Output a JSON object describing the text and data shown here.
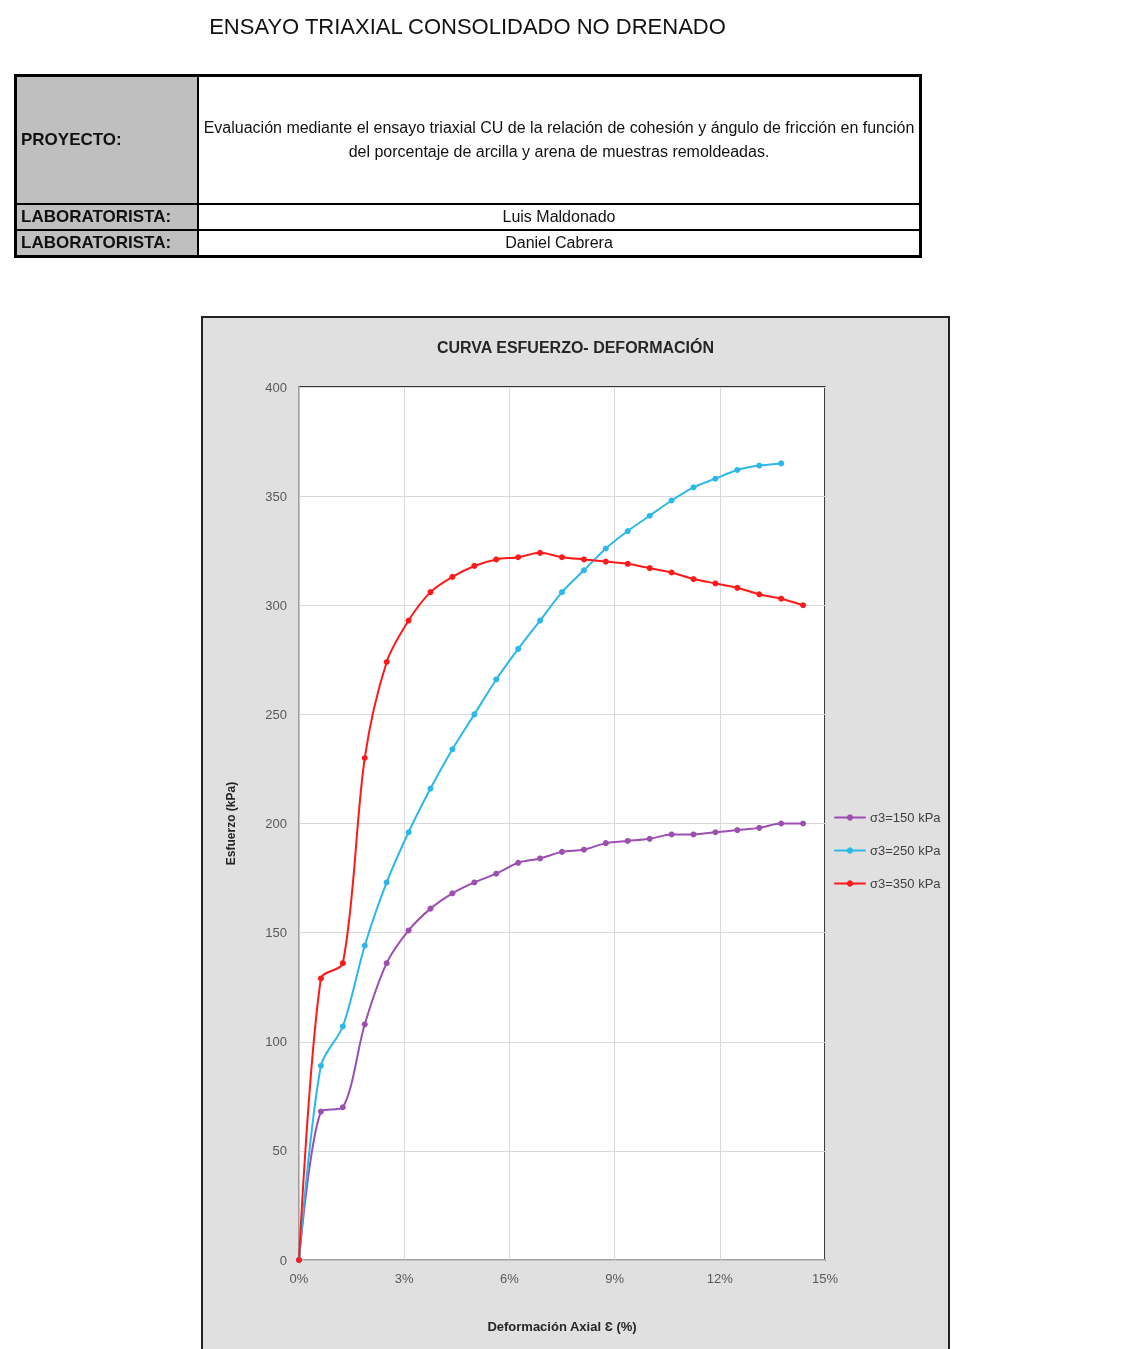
{
  "chart_data": {
    "type": "line",
    "title": "CURVA ESFUERZO- DEFORMACIÓN",
    "xlabel": "Deformación Axial Ɛ (%)",
    "ylabel": "Esfuerzo (kPa)",
    "annotations": [
      "ENSAYO TRIAXIAL CONSOLIDADO NO DRENADO",
      "PROYECTO:",
      "Evaluación mediante el ensayo triaxial CU de la relación de cohesión y ángulo de fricción en función del porcentaje de arcilla y arena de muestras remoldeadas.",
      "LABORATORISTA:",
      "Luis Maldonado",
      "LABORATORISTA:",
      "Daniel Cabrera"
    ],
    "x": [
      0,
      0.625,
      1.25,
      1.875,
      2.5,
      3.125,
      3.75,
      4.375,
      5,
      5.625,
      6.25,
      6.875,
      7.5,
      8.125,
      8.75,
      9.375,
      10,
      10.625,
      11.25,
      11.875,
      12.5,
      13.125,
      13.75,
      14.375
    ],
    "series": [
      {
        "name": "σ3=150 kPa",
        "color": "#9c4fb0",
        "values": [
          0,
          68,
          70,
          108,
          136,
          151,
          161,
          168,
          173,
          177,
          182,
          184,
          187,
          188,
          191,
          192,
          193,
          195,
          195,
          196,
          197,
          198,
          200,
          200
        ]
      },
      {
        "name": "σ3=250 kPa",
        "color": "#2cb8ea",
        "x": [
          0,
          0.625,
          1.25,
          1.875,
          2.5,
          3.125,
          3.75,
          4.375,
          5,
          5.625,
          6.25,
          6.875,
          7.5,
          8.125,
          8.75,
          9.375,
          10,
          10.625,
          11.25,
          11.875,
          12.5,
          13.125,
          13.75
        ],
        "values": [
          0,
          89,
          107,
          144,
          173,
          196,
          216,
          234,
          250,
          266,
          280,
          293,
          306,
          316,
          326,
          334,
          341,
          348,
          354,
          358,
          362,
          364,
          365
        ]
      },
      {
        "name": "σ3=350 kPa",
        "color": "#ff1a1a",
        "values": [
          0,
          129,
          136,
          230,
          274,
          293,
          306,
          313,
          318,
          321,
          322,
          324,
          322,
          321,
          320,
          319,
          317,
          315,
          312,
          310,
          308,
          305,
          303,
          300
        ]
      }
    ],
    "xlim": [
      0,
      15
    ],
    "xticks": [
      {
        "value": 0,
        "label": "0%"
      },
      {
        "value": 3,
        "label": "3%"
      },
      {
        "value": 6,
        "label": "6%"
      },
      {
        "value": 9,
        "label": "9%"
      },
      {
        "value": 12,
        "label": "12%"
      },
      {
        "value": 15,
        "label": "15%"
      }
    ],
    "ylim": [
      0,
      400
    ],
    "yticks": [
      0,
      50,
      100,
      150,
      200,
      250,
      300,
      350,
      400
    ],
    "grid": true,
    "legend": "right",
    "marker": "circle"
  }
}
